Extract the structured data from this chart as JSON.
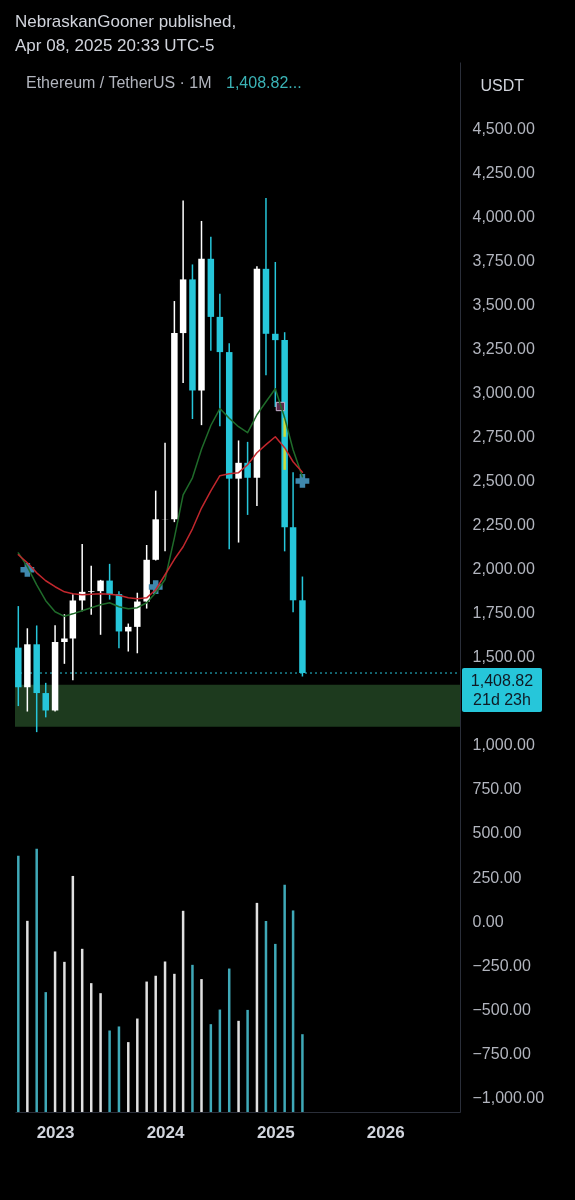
{
  "chart_data": {
    "type": "candlestick",
    "title": "Ethereum / TetherUS · 1M",
    "subtitle": "1,408.82...",
    "ylabel": "USDT",
    "annotations": [
      "NebraskanGooner published,",
      "Apr 08, 2025 20:33 UTC-5"
    ],
    "x": [
      "2022-09",
      "2022-10",
      "2022-11",
      "2022-12",
      "2023-01",
      "2023-02",
      "2023-03",
      "2023-04",
      "2023-05",
      "2023-06",
      "2023-07",
      "2023-08",
      "2023-09",
      "2023-10",
      "2023-11",
      "2023-12",
      "2024-01",
      "2024-02",
      "2024-03",
      "2024-04",
      "2024-05",
      "2024-06",
      "2024-07",
      "2024-08",
      "2024-09",
      "2024-10",
      "2024-11",
      "2024-12",
      "2025-01",
      "2025-02",
      "2025-03",
      "2025-04"
    ],
    "ohlc": [
      [
        1553,
        1789,
        1221,
        1328
      ],
      [
        1328,
        1663,
        1190,
        1572
      ],
      [
        1572,
        1679,
        1073,
        1295
      ],
      [
        1295,
        1353,
        1157,
        1196
      ],
      [
        1196,
        1680,
        1190,
        1585
      ],
      [
        1585,
        1743,
        1461,
        1605
      ],
      [
        1605,
        1857,
        1368,
        1821
      ],
      [
        1821,
        2142,
        1760,
        1870
      ],
      [
        1870,
        2018,
        1740,
        1874
      ],
      [
        1874,
        1938,
        1626,
        1934
      ],
      [
        1934,
        2029,
        1826,
        1857
      ],
      [
        1857,
        1873,
        1550,
        1645
      ],
      [
        1645,
        1690,
        1531,
        1671
      ],
      [
        1671,
        1865,
        1521,
        1815
      ],
      [
        1815,
        2136,
        1775,
        2052
      ],
      [
        2052,
        2445,
        2048,
        2282
      ],
      [
        2282,
        2717,
        2100,
        2283
      ],
      [
        2283,
        3522,
        2266,
        3340
      ],
      [
        3340,
        4093,
        3056,
        3645
      ],
      [
        3645,
        3730,
        2852,
        3014
      ],
      [
        3014,
        3977,
        2817,
        3762
      ],
      [
        3762,
        3887,
        3240,
        3432
      ],
      [
        3432,
        3563,
        2811,
        3232
      ],
      [
        3232,
        3282,
        2112,
        2513
      ],
      [
        2513,
        2730,
        2150,
        2603
      ],
      [
        2603,
        2722,
        2307,
        2518
      ],
      [
        2518,
        3720,
        2357,
        3705
      ],
      [
        3705,
        4107,
        3100,
        3336
      ],
      [
        3336,
        3744,
        2920,
        3300
      ],
      [
        3300,
        3345,
        2100,
        2237
      ],
      [
        2237,
        2550,
        1754,
        1822
      ],
      [
        1822,
        1957,
        1389,
        1408.82
      ]
    ],
    "colors": [
      "#26c6da",
      "#ffffff",
      "#26c6da",
      "#26c6da",
      "#ffffff",
      "#ffffff",
      "#ffffff",
      "#ffffff",
      "#ffffff",
      "#ffffff",
      "#26c6da",
      "#26c6da",
      "#ffffff",
      "#ffffff",
      "#ffffff",
      "#ffffff",
      "#ffffff",
      "#ffffff",
      "#ffffff",
      "#26c6da",
      "#ffffff",
      "#26c6da",
      "#26c6da",
      "#26c6da",
      "#ffffff",
      "#26c6da",
      "#ffffff",
      "#26c6da",
      "#26c6da",
      "#26c6da",
      "#26c6da",
      "#26c6da"
    ],
    "series": [
      {
        "type": "line",
        "color": "#1f6b2a",
        "values": [
          2091,
          2013,
          1910,
          1820,
          1757,
          1731,
          1745,
          1763,
          1780,
          1797,
          1808,
          1785,
          1774,
          1780,
          1808,
          1865,
          1940,
          2177,
          2421,
          2518,
          2680,
          2815,
          2911,
          2856,
          2808,
          2774,
          2876,
          2950,
          3024,
          2859,
          2677,
          2524
        ]
      },
      {
        "type": "line",
        "color": "#c2272d",
        "values": [
          2081,
          2035,
          1978,
          1933,
          1899,
          1870,
          1859,
          1853,
          1856,
          1859,
          1856,
          1851,
          1836,
          1831,
          1836,
          1882,
          1967,
          2055,
          2126,
          2228,
          2346,
          2444,
          2530,
          2541,
          2547,
          2592,
          2660,
          2706,
          2751,
          2689,
          2609,
          2550
        ]
      },
      {
        "type": "bar",
        "base": [
          -1085,
          -1085,
          -1085,
          -1085,
          -1085,
          -1085,
          -1085,
          -1085,
          -1085,
          -1085,
          -1085,
          -1085,
          -1085,
          -1085,
          -1085,
          -1085,
          -1085,
          -1085,
          -1085,
          -1085,
          -1085,
          -1085,
          -1085,
          -1085,
          -1085,
          -1085,
          -1085,
          -1085,
          -1085,
          -1085,
          -1085,
          -1085
        ],
        "values": [
          1456,
          1086,
          1495,
          681,
          912,
          853,
          1341,
          927,
          732,
          675,
          463,
          486,
          397,
          531,
          741,
          774,
          855,
          785,
          1143,
          836,
          755,
          499,
          582,
          815,
          518,
          580,
          1188,
          1085,
          955,
          1291,
          1145,
          442
        ],
        "colors": [
          "#3fa9b8",
          "#e0e0e0",
          "#3fa9b8",
          "#3fa9b8",
          "#e0e0e0",
          "#e0e0e0",
          "#e0e0e0",
          "#e0e0e0",
          "#e0e0e0",
          "#e0e0e0",
          "#3fa9b8",
          "#3fa9b8",
          "#e0e0e0",
          "#e0e0e0",
          "#e0e0e0",
          "#e0e0e0",
          "#e0e0e0",
          "#e0e0e0",
          "#e0e0e0",
          "#3fa9b8",
          "#e0e0e0",
          "#3fa9b8",
          "#3fa9b8",
          "#3fa9b8",
          "#e0e0e0",
          "#3fa9b8",
          "#e0e0e0",
          "#3fa9b8",
          "#3fa9b8",
          "#3fa9b8",
          "#3fa9b8",
          "#3fa9b8"
        ]
      },
      {
        "type": "scatter",
        "marker": "cross",
        "color": "#3f88ad",
        "x": [
          "2022-10",
          "2023-12",
          "2025-04"
        ],
        "values": [
          1995,
          1897,
          2500
        ]
      },
      {
        "type": "scatter",
        "marker": "square",
        "color": "#5b2a4a",
        "x": [
          "2025-01-18"
        ],
        "values": [
          2923
        ]
      },
      {
        "type": "bar",
        "color": "#cddc39",
        "x": [
          "2025-02",
          "2025-02"
        ],
        "base": [
          2751,
          2563
        ],
        "values": [
          107,
          125
        ]
      }
    ],
    "bands": [
      {
        "axis": "y",
        "from": 1103,
        "to": 1342,
        "color": "#1d3a1e"
      }
    ],
    "ref_lines": [
      {
        "axis": "y",
        "value": 1408.82,
        "label": "1,408.82\n21d 23h",
        "color": "#26c6da",
        "line_style": "dotted"
      }
    ],
    "xlim": [
      "2022-08-21",
      "2026-09-06"
    ],
    "xticks": [
      "2023",
      "2024",
      "2025",
      "2026"
    ],
    "ylim": [
      -1085,
      4880
    ],
    "yticks": [
      {
        "value": 4500,
        "label": "4,500.00"
      },
      {
        "value": 4250,
        "label": "4,250.00"
      },
      {
        "value": 4000,
        "label": "4,000.00"
      },
      {
        "value": 3750,
        "label": "3,750.00"
      },
      {
        "value": 3500,
        "label": "3,500.00"
      },
      {
        "value": 3250,
        "label": "3,250.00"
      },
      {
        "value": 3000,
        "label": "3,000.00"
      },
      {
        "value": 2750,
        "label": "2,750.00"
      },
      {
        "value": 2500,
        "label": "2,500.00"
      },
      {
        "value": 2250,
        "label": "2,250.00"
      },
      {
        "value": 2000,
        "label": "2,000.00"
      },
      {
        "value": 1750,
        "label": "1,750.00"
      },
      {
        "value": 1500,
        "label": "1,500.00"
      },
      {
        "value": 1000,
        "label": "1,000.00"
      },
      {
        "value": 750,
        "label": "750.00"
      },
      {
        "value": 500,
        "label": "500.00"
      },
      {
        "value": 250,
        "label": "250.00"
      },
      {
        "value": 0,
        "label": "0.00"
      },
      {
        "value": -250,
        "label": "−250.00"
      },
      {
        "value": -500,
        "label": "−500.00"
      },
      {
        "value": -750,
        "label": "−750.00"
      },
      {
        "value": -1000,
        "label": "−1,000.00"
      }
    ]
  }
}
